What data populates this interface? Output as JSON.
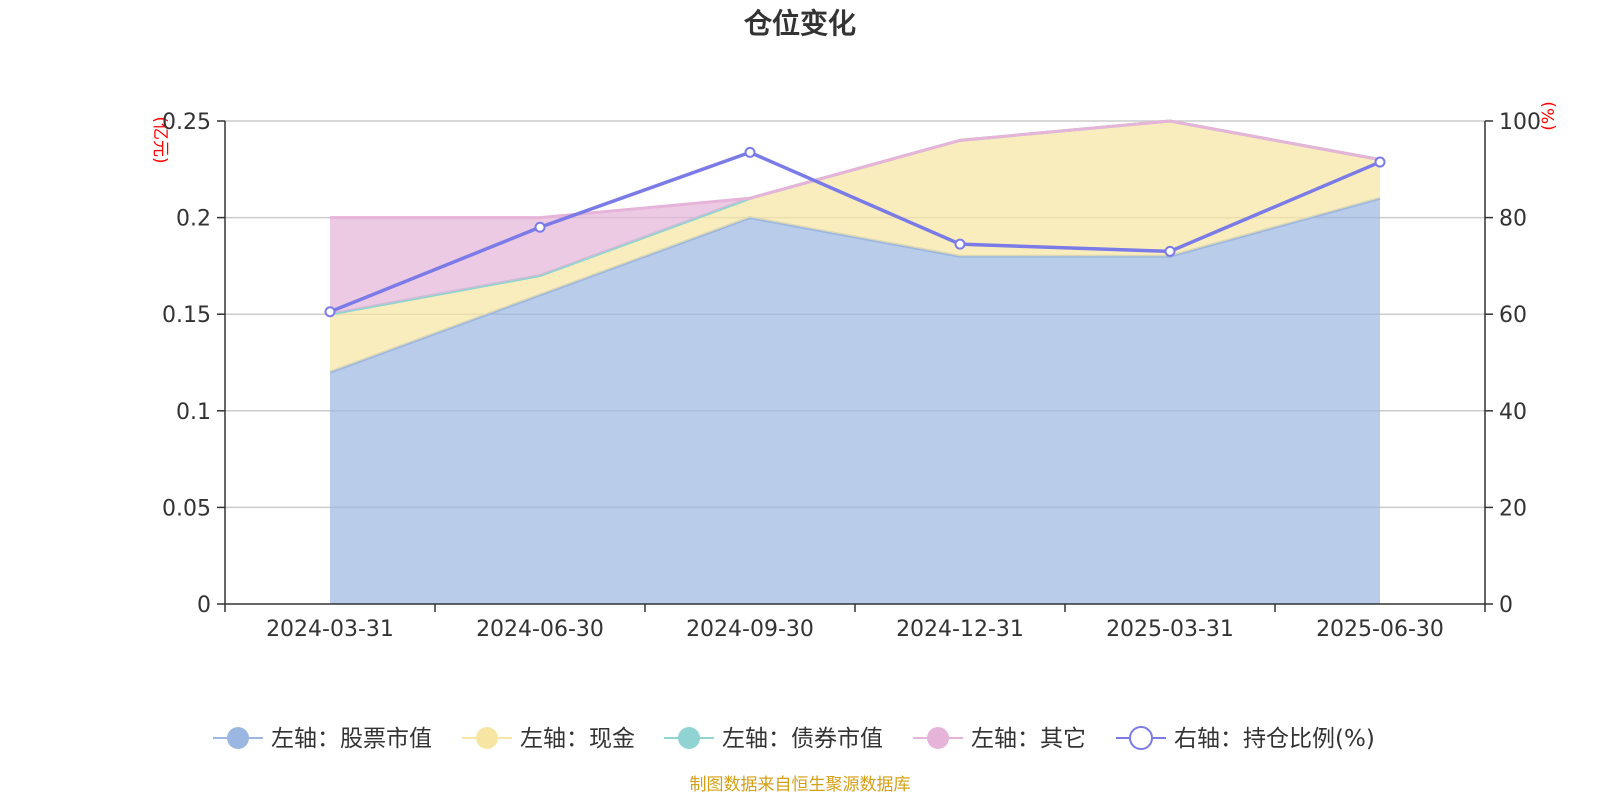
{
  "chart_data": {
    "type": "area",
    "title": "仓位变化",
    "categories": [
      "2024-03-31",
      "2024-06-30",
      "2024-09-30",
      "2024-12-31",
      "2025-03-31",
      "2025-06-30"
    ],
    "left_axis": {
      "unit": "(亿元)",
      "ylim": [
        0,
        0.25
      ],
      "ticks": [
        "0",
        "0.05",
        "0.1",
        "0.15",
        "0.2",
        "0.25"
      ],
      "tick_values": [
        0,
        0.05,
        0.1,
        0.15,
        0.2,
        0.25
      ]
    },
    "right_axis": {
      "unit": "(%)",
      "ylim": [
        0,
        100
      ],
      "ticks": [
        "0",
        "20",
        "40",
        "60",
        "80",
        "100"
      ],
      "tick_values": [
        0,
        20,
        40,
        60,
        80,
        100
      ]
    },
    "series": [
      {
        "name": "左轴：股票市值",
        "axis": "left",
        "stacked": true,
        "color": "#9bb6e0",
        "values": [
          0.12,
          0.16,
          0.2,
          0.18,
          0.18,
          0.21
        ]
      },
      {
        "name": "左轴：现金",
        "axis": "left",
        "stacked": true,
        "color": "#f7e6a3",
        "values": [
          0.03,
          0.01,
          0.01,
          0.06,
          0.07,
          0.02
        ]
      },
      {
        "name": "左轴：债券市值",
        "axis": "left",
        "stacked": true,
        "color": "#8fd3d3",
        "values": [
          0,
          0,
          0,
          0,
          0,
          0
        ]
      },
      {
        "name": "左轴：其它",
        "axis": "left",
        "stacked": true,
        "color": "#e6b3d9",
        "values": [
          0.05,
          0.03,
          0,
          0,
          0,
          0
        ]
      },
      {
        "name": "右轴：持仓比例(%)",
        "axis": "right",
        "type": "line",
        "color": "#7b7be8",
        "values": [
          60.5,
          78,
          93.5,
          74.5,
          73,
          91.5
        ]
      }
    ],
    "grid": true,
    "legend_position": "bottom"
  },
  "footer": {
    "source": "制图数据来自恒生聚源数据库"
  }
}
